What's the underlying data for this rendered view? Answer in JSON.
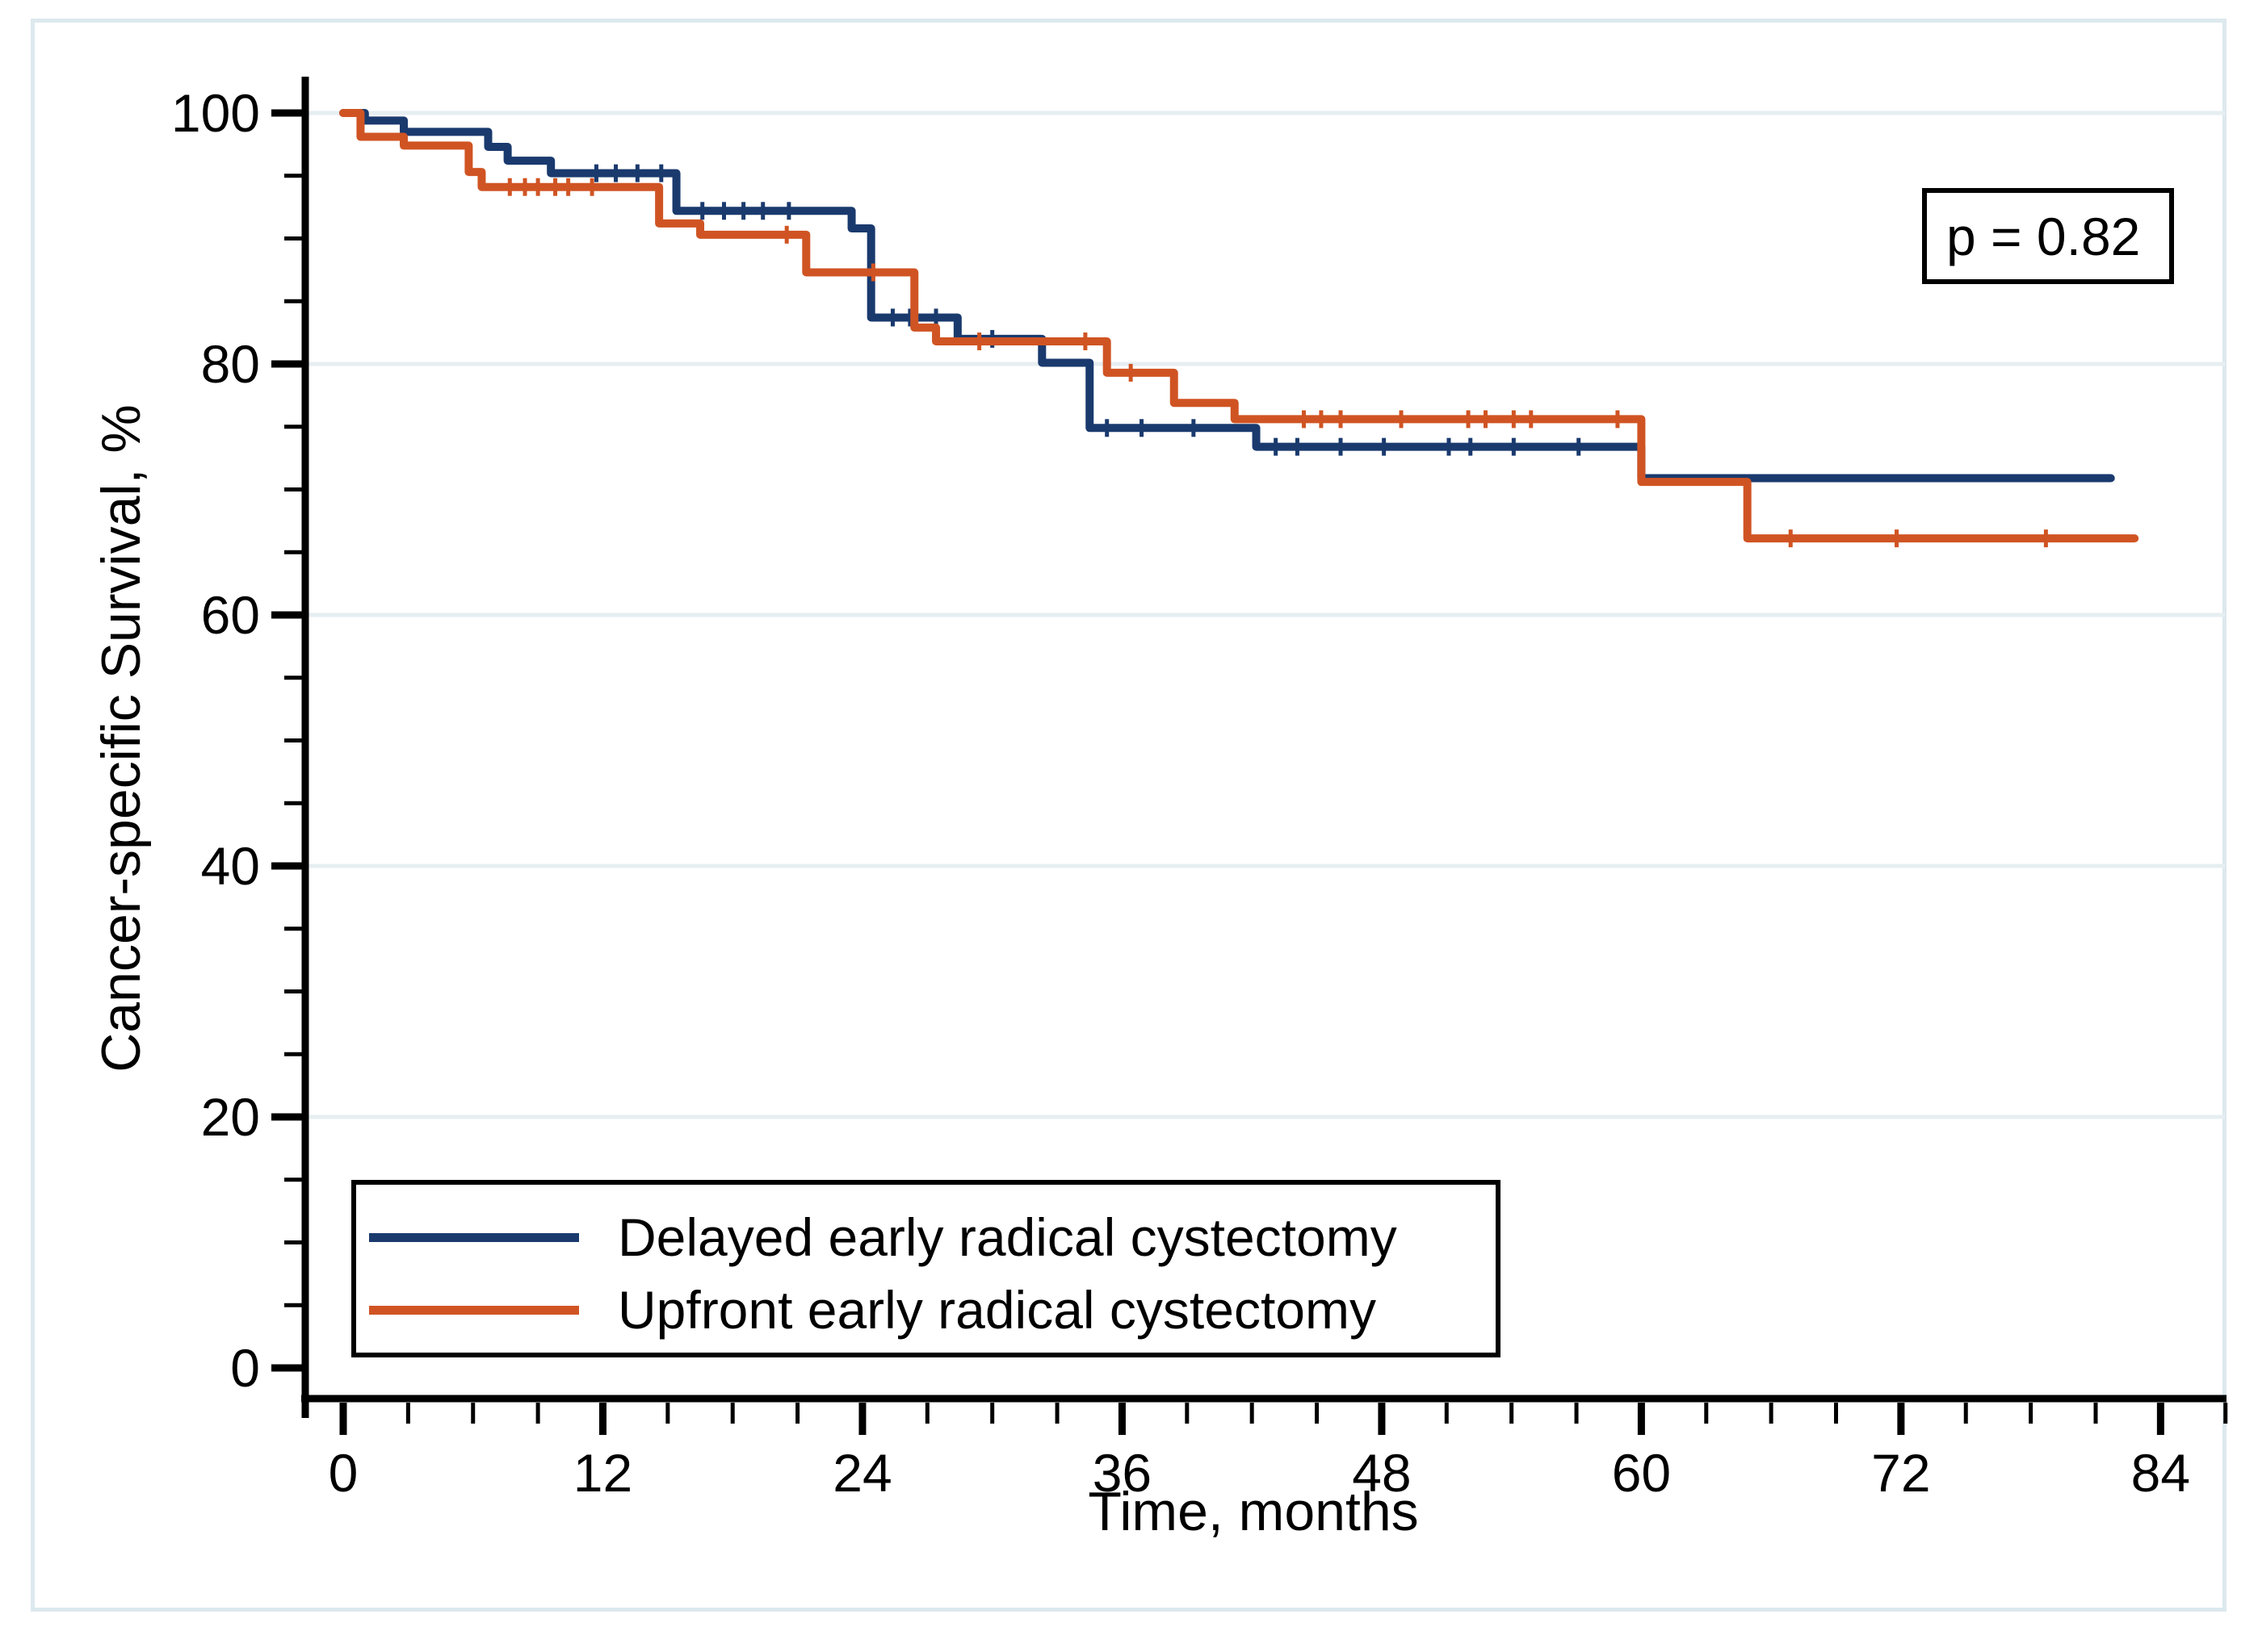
{
  "figure": {
    "background": "#ffffff",
    "frame_color": "#dce9ee",
    "grid_color": "#e6eef1",
    "axis_color": "#000000"
  },
  "axes": {
    "x_title": "Time, months",
    "y_title": "Cancer-specific Survival, %"
  },
  "annotation": {
    "p_label": "p = 0.82"
  },
  "legend": {
    "items": [
      {
        "label": "Delayed early radical cystectomy",
        "color": "#1a3a6e"
      },
      {
        "label": "Upfront early radical cystectomy",
        "color": "#d05423"
      }
    ]
  },
  "chart_data": {
    "type": "line",
    "subtype": "kaplan-meier-step",
    "title": "",
    "xlabel": "Time, months",
    "ylabel": "Cancer-specific Survival, %",
    "xlim": [
      0,
      87
    ],
    "ylim": [
      0,
      100
    ],
    "xticks_major": [
      0,
      12,
      24,
      36,
      48,
      60,
      72,
      84
    ],
    "xticks_minor_interval": 3,
    "yticks_major": [
      0,
      20,
      40,
      60,
      80,
      100
    ],
    "yticks_minor_interval": 5,
    "grid": "horizontal-major",
    "legend_position": "bottom-left-inside",
    "annotation": "p = 0.82",
    "series": [
      {
        "name": "Delayed early radical cystectomy",
        "color": "#1a3a6e",
        "end_time": 81.7,
        "steps": [
          [
            0,
            100
          ],
          [
            1.0,
            99.4
          ],
          [
            2.8,
            98.5
          ],
          [
            6.7,
            97.3
          ],
          [
            7.6,
            96.2
          ],
          [
            9.6,
            95.2
          ],
          [
            15.4,
            92.2
          ],
          [
            23.5,
            90.8
          ],
          [
            24.4,
            83.7
          ],
          [
            28.4,
            82.0
          ],
          [
            32.3,
            80.1
          ],
          [
            34.5,
            74.9
          ],
          [
            42.2,
            73.4
          ],
          [
            60.0,
            70.9
          ]
        ],
        "censors": [
          [
            11.7,
            95.2
          ],
          [
            12.6,
            95.2
          ],
          [
            13.6,
            95.2
          ],
          [
            14.7,
            95.2
          ],
          [
            16.6,
            92.2
          ],
          [
            17.6,
            92.2
          ],
          [
            18.5,
            92.2
          ],
          [
            19.4,
            92.2
          ],
          [
            20.6,
            92.2
          ],
          [
            25.4,
            83.7
          ],
          [
            26.2,
            83.7
          ],
          [
            27.4,
            83.7
          ],
          [
            30.0,
            82.0
          ],
          [
            35.3,
            74.9
          ],
          [
            36.9,
            74.9
          ],
          [
            39.3,
            74.9
          ],
          [
            43.1,
            73.4
          ],
          [
            44.1,
            73.4
          ],
          [
            46.1,
            73.4
          ],
          [
            48.1,
            73.4
          ],
          [
            51.1,
            73.4
          ],
          [
            52.1,
            73.4
          ],
          [
            54.1,
            73.4
          ],
          [
            57.1,
            73.4
          ]
        ]
      },
      {
        "name": "Upfront early radical cystectomy",
        "color": "#d05423",
        "end_time": 82.8,
        "steps": [
          [
            0,
            100
          ],
          [
            0.8,
            98.1
          ],
          [
            2.8,
            97.4
          ],
          [
            5.8,
            95.3
          ],
          [
            6.4,
            94.1
          ],
          [
            14.6,
            91.2
          ],
          [
            16.5,
            90.3
          ],
          [
            21.4,
            87.3
          ],
          [
            26.4,
            82.9
          ],
          [
            27.4,
            81.8
          ],
          [
            35.3,
            79.3
          ],
          [
            38.4,
            76.9
          ],
          [
            41.2,
            75.6
          ],
          [
            60.0,
            70.6
          ],
          [
            64.9,
            66.1
          ]
        ],
        "censors": [
          [
            7.7,
            94.1
          ],
          [
            8.4,
            94.1
          ],
          [
            9.0,
            94.1
          ],
          [
            9.8,
            94.1
          ],
          [
            10.4,
            94.1
          ],
          [
            11.5,
            94.1
          ],
          [
            20.5,
            90.3
          ],
          [
            24.5,
            87.3
          ],
          [
            29.4,
            81.8
          ],
          [
            34.3,
            81.8
          ],
          [
            36.4,
            79.3
          ],
          [
            44.4,
            75.6
          ],
          [
            45.2,
            75.6
          ],
          [
            46.1,
            75.6
          ],
          [
            48.9,
            75.6
          ],
          [
            52.0,
            75.6
          ],
          [
            52.8,
            75.6
          ],
          [
            54.1,
            75.6
          ],
          [
            54.9,
            75.6
          ],
          [
            58.9,
            75.6
          ],
          [
            66.9,
            66.1
          ],
          [
            71.8,
            66.1
          ],
          [
            78.7,
            66.1
          ]
        ]
      }
    ]
  }
}
